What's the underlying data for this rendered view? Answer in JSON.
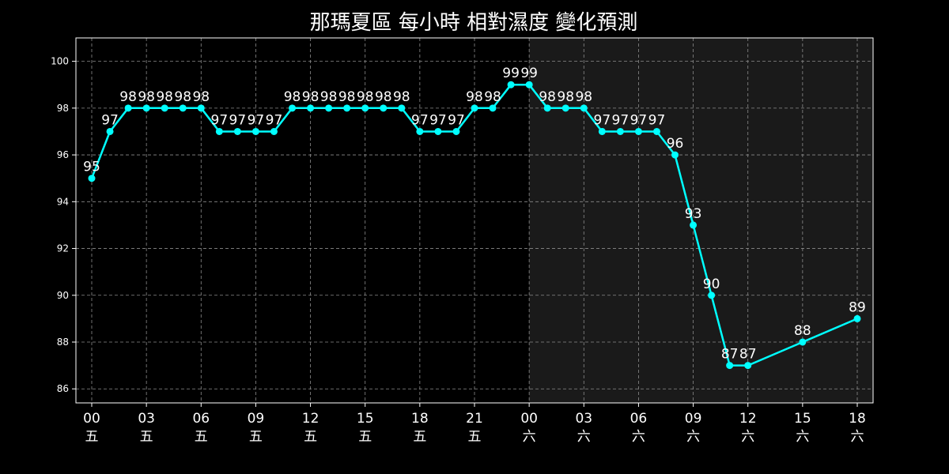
{
  "chart_data": {
    "type": "line",
    "title": "那瑪夏區 每小時 相對濕度 變化預測",
    "xlabel": "",
    "ylabel": "",
    "ylim": [
      85.4,
      101
    ],
    "yticks": [
      86,
      88,
      90,
      92,
      94,
      96,
      98,
      100
    ],
    "grid": true,
    "x_hours": [
      0,
      1,
      2,
      3,
      4,
      5,
      6,
      7,
      8,
      9,
      10,
      11,
      12,
      13,
      14,
      15,
      16,
      17,
      18,
      19,
      20,
      21,
      22,
      23,
      24,
      25,
      26,
      27,
      28,
      29,
      30,
      31,
      32,
      33,
      34,
      35,
      36,
      39,
      42
    ],
    "x_ticks": [
      {
        "hour": 0,
        "time": "00",
        "day": "五"
      },
      {
        "hour": 3,
        "time": "03",
        "day": "五"
      },
      {
        "hour": 6,
        "time": "06",
        "day": "五"
      },
      {
        "hour": 9,
        "time": "09",
        "day": "五"
      },
      {
        "hour": 12,
        "time": "12",
        "day": "五"
      },
      {
        "hour": 15,
        "time": "15",
        "day": "五"
      },
      {
        "hour": 18,
        "time": "18",
        "day": "五"
      },
      {
        "hour": 21,
        "time": "21",
        "day": "五"
      },
      {
        "hour": 24,
        "time": "00",
        "day": "六"
      },
      {
        "hour": 27,
        "time": "03",
        "day": "六"
      },
      {
        "hour": 30,
        "time": "06",
        "day": "六"
      },
      {
        "hour": 33,
        "time": "09",
        "day": "六"
      },
      {
        "hour": 36,
        "time": "12",
        "day": "六"
      },
      {
        "hour": 39,
        "time": "15",
        "day": "六"
      },
      {
        "hour": 42,
        "time": "18",
        "day": "六"
      }
    ],
    "series": [
      {
        "values": [
          95,
          97,
          98,
          98,
          98,
          98,
          98,
          97,
          97,
          97,
          97,
          98,
          98,
          98,
          98,
          98,
          98,
          98,
          97,
          97,
          97,
          98,
          98,
          99,
          99,
          98,
          98,
          98,
          97,
          97,
          97,
          97,
          96,
          93,
          90,
          87,
          87,
          88,
          89
        ],
        "color": "#00ffff"
      }
    ],
    "shaded_region": {
      "from_hour": 24,
      "color": "#1a1a1a"
    },
    "colors": {
      "background": "#000000",
      "text": "#ffffff",
      "grid": "#8c8c8c"
    }
  }
}
